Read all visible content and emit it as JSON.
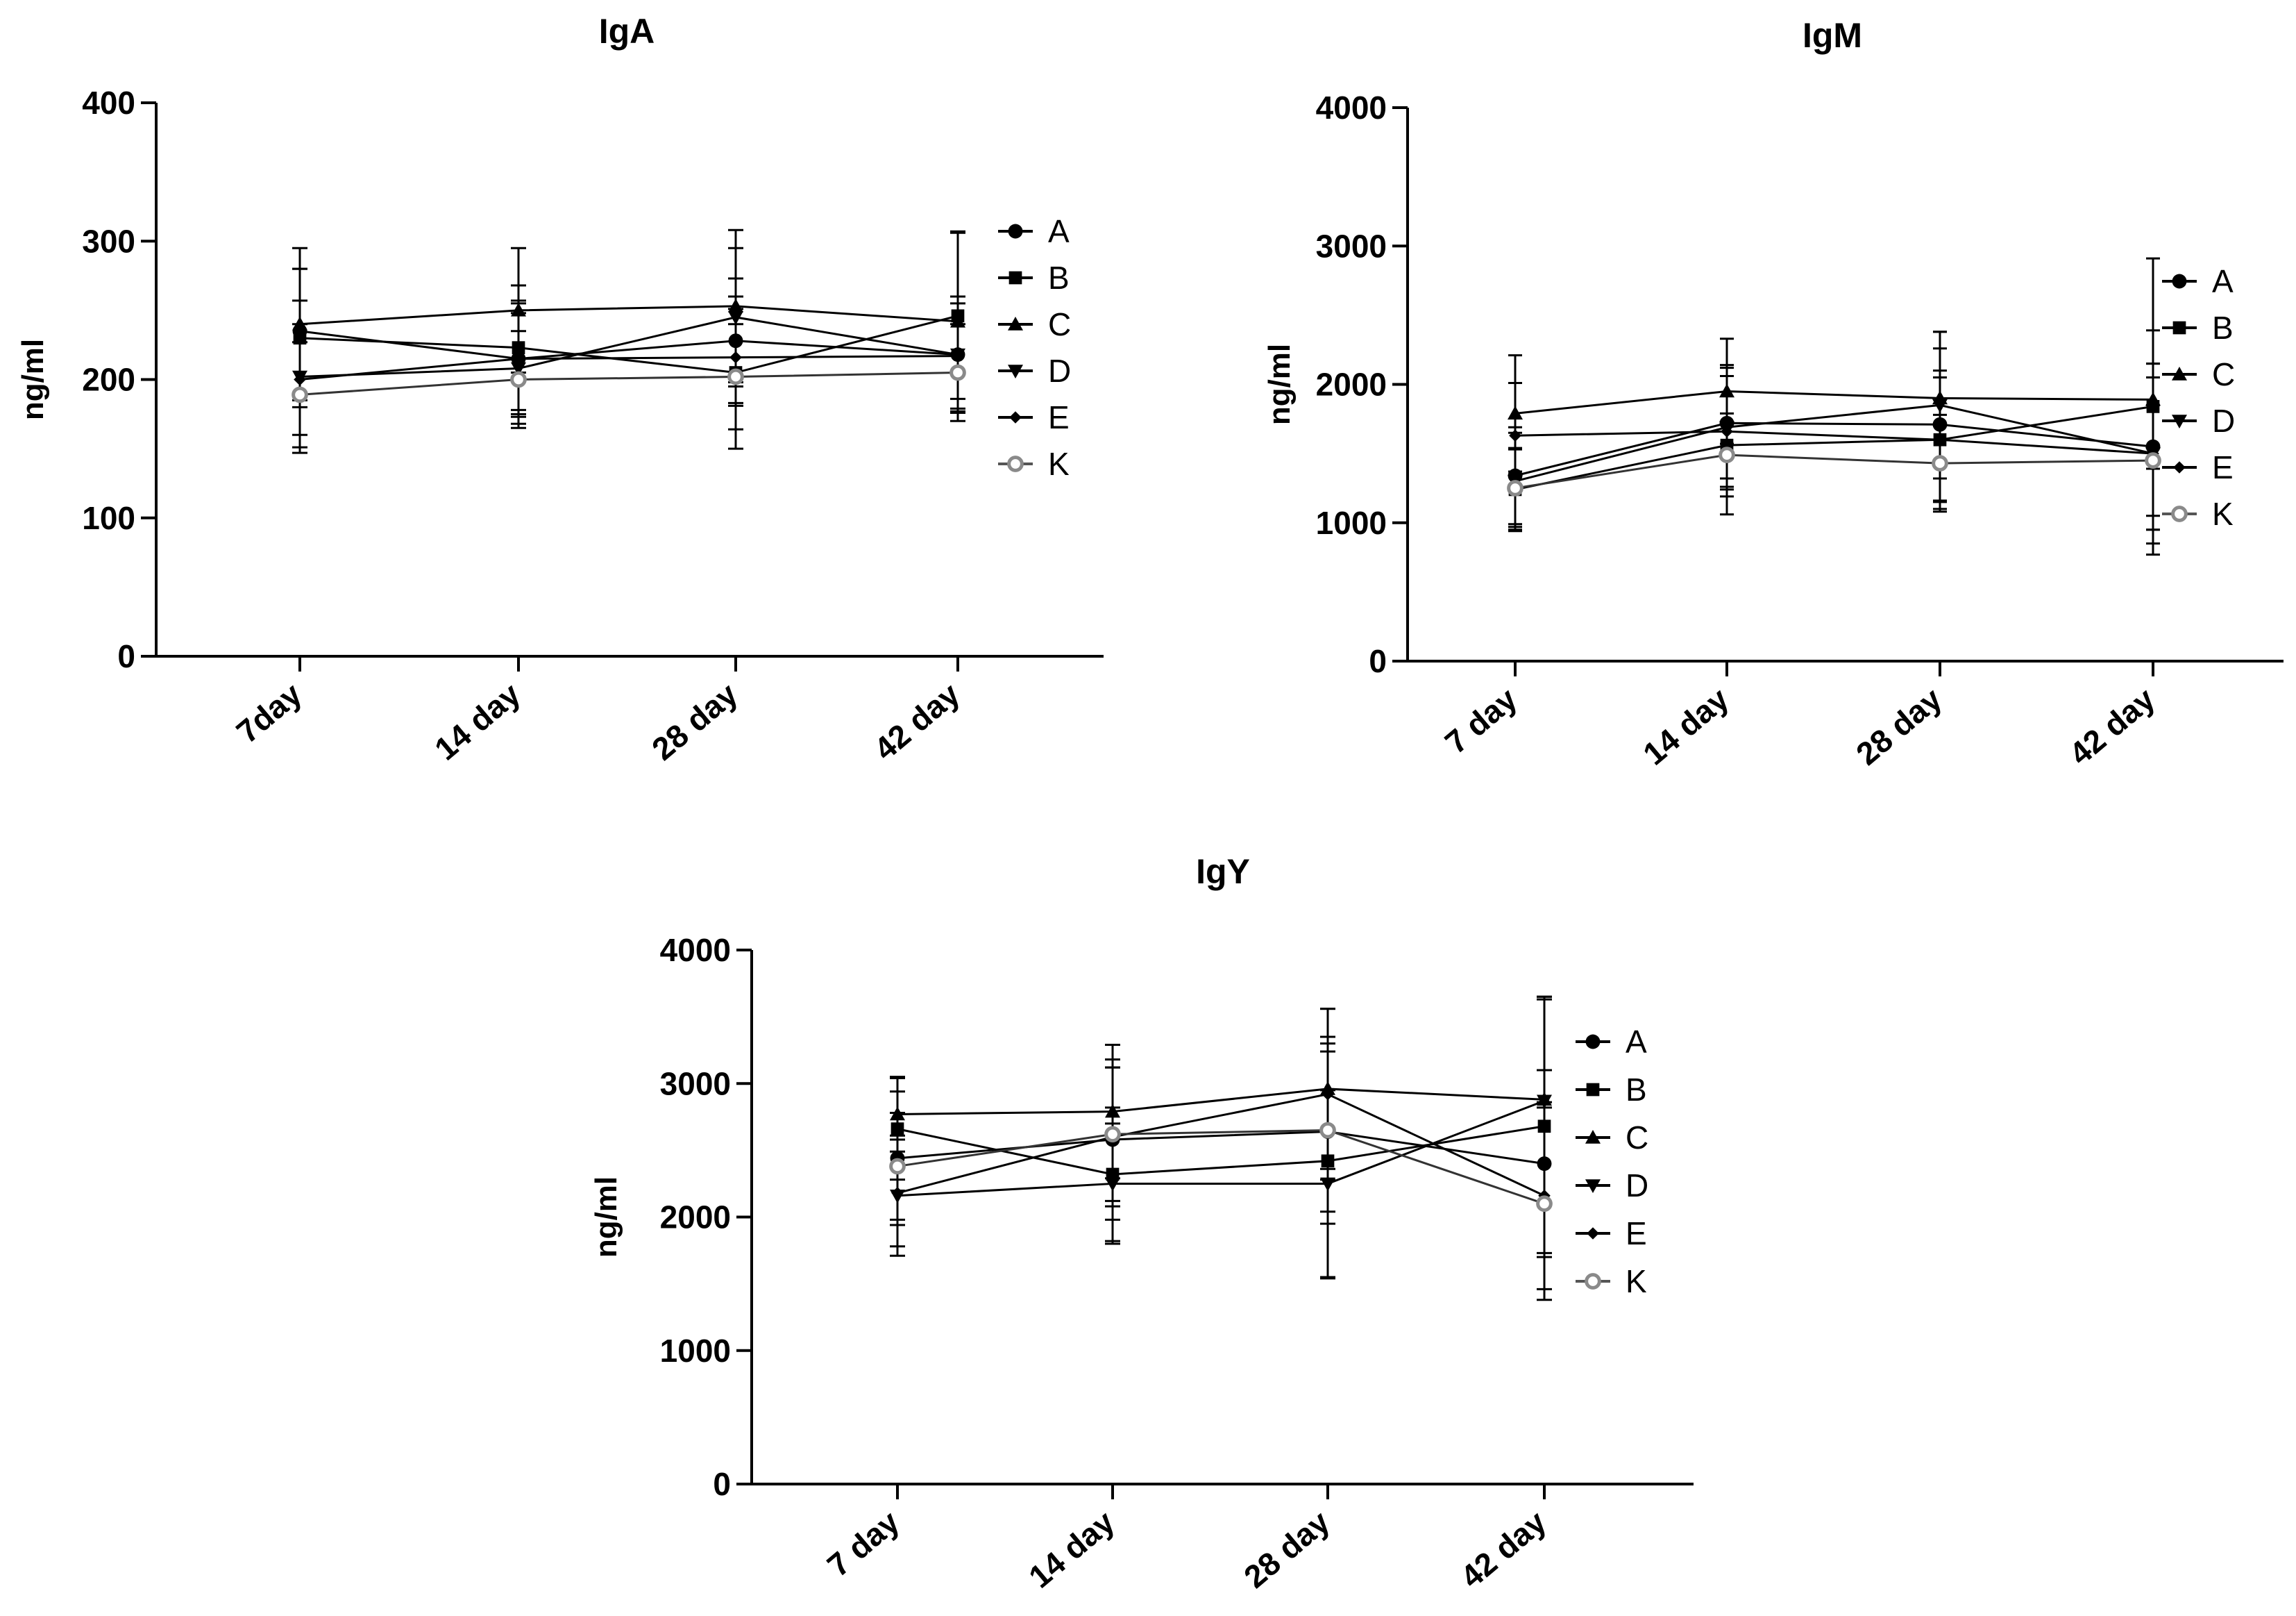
{
  "chart_data": [
    {
      "type": "line",
      "title": "IgA",
      "xlabel": "",
      "ylabel": "ng/ml",
      "ylim": [
        0,
        400
      ],
      "yticks": [
        0,
        100,
        200,
        300,
        400
      ],
      "categories": [
        "7day",
        "14 day",
        "28 day",
        "42 day"
      ],
      "legend": [
        "A",
        "B",
        "C",
        "D",
        "E",
        "K"
      ],
      "series": [
        {
          "name": "A",
          "marker": "circle",
          "values": [
            235,
            215,
            228,
            218
          ],
          "err": [
            45,
            40,
            45,
            42
          ]
        },
        {
          "name": "B",
          "marker": "square",
          "values": [
            230,
            223,
            205,
            246
          ],
          "err": [
            50,
            45,
            55,
            60
          ]
        },
        {
          "name": "C",
          "marker": "triangle-up",
          "values": [
            240,
            250,
            253,
            242
          ],
          "err": [
            55,
            45,
            55,
            65
          ]
        },
        {
          "name": "D",
          "marker": "triangle-down",
          "values": [
            202,
            208,
            245,
            218
          ],
          "err": [
            55,
            40,
            50,
            42
          ]
        },
        {
          "name": "E",
          "marker": "diamond",
          "values": [
            200,
            215,
            216,
            217
          ],
          "err": [
            40,
            42,
            35,
            38
          ]
        },
        {
          "name": "K",
          "marker": "open-circle",
          "values": [
            189,
            200,
            202,
            205
          ],
          "err": [
            38,
            35,
            38,
            35
          ]
        }
      ]
    },
    {
      "type": "line",
      "title": "IgM",
      "xlabel": "",
      "ylabel": "ng/ml",
      "ylim": [
        0,
        4000
      ],
      "yticks": [
        0,
        1000,
        2000,
        3000,
        4000
      ],
      "categories": [
        "7 day",
        "14 day",
        "28 day",
        "42 day"
      ],
      "legend": [
        "A",
        "B",
        "C",
        "D",
        "E",
        "K"
      ],
      "series": [
        {
          "name": "A",
          "marker": "circle",
          "values": [
            1340,
            1720,
            1710,
            1550
          ],
          "err": [
            350,
            400,
            550,
            600
          ]
        },
        {
          "name": "B",
          "marker": "square",
          "values": [
            1240,
            1560,
            1600,
            1840
          ],
          "err": [
            300,
            500,
            500,
            1070
          ]
        },
        {
          "name": "C",
          "marker": "triangle-up",
          "values": [
            1790,
            1950,
            1900,
            1890
          ],
          "err": [
            420,
            380,
            480,
            500
          ]
        },
        {
          "name": "D",
          "marker": "triangle-down",
          "values": [
            1300,
            1690,
            1850,
            1500
          ],
          "err": [
            350,
            450,
            530,
            650
          ]
        },
        {
          "name": "E",
          "marker": "diamond",
          "values": [
            1630,
            1660,
            1600,
            1500
          ],
          "err": [
            380,
            400,
            450,
            550
          ]
        },
        {
          "name": "K",
          "marker": "open-circle",
          "values": [
            1250,
            1490,
            1430,
            1450
          ],
          "err": [
            280,
            300,
            350,
            400
          ]
        }
      ]
    },
    {
      "type": "line",
      "title": "IgY",
      "xlabel": "",
      "ylabel": "ng/ml",
      "ylim": [
        0,
        4000
      ],
      "yticks": [
        0,
        1000,
        2000,
        3000,
        4000
      ],
      "categories": [
        "7 day",
        "14 day",
        "28 day",
        "42 day"
      ],
      "legend": [
        "A",
        "B",
        "C",
        "D",
        "E",
        "K"
      ],
      "series": [
        {
          "name": "A",
          "marker": "circle",
          "values": [
            2440,
            2580,
            2640,
            2400
          ],
          "err": [
            500,
            600,
            600,
            700
          ]
        },
        {
          "name": "B",
          "marker": "square",
          "values": [
            2660,
            2320,
            2420,
            2680
          ],
          "err": [
            380,
            500,
            880,
            950
          ]
        },
        {
          "name": "C",
          "marker": "triangle-up",
          "values": [
            2770,
            2790,
            2960,
            2880
          ],
          "err": [
            280,
            500,
            600,
            770
          ]
        },
        {
          "name": "D",
          "marker": "triangle-down",
          "values": [
            2160,
            2250,
            2250,
            2870
          ],
          "err": [
            450,
            450,
            700,
            780
          ]
        },
        {
          "name": "E",
          "marker": "diamond",
          "values": [
            2180,
            2600,
            2920,
            2160
          ],
          "err": [
            400,
            520,
            640,
            700
          ]
        },
        {
          "name": "K",
          "marker": "open-circle",
          "values": [
            2380,
            2620,
            2650,
            2100
          ],
          "err": [
            400,
            500,
            700,
            720
          ]
        }
      ]
    }
  ]
}
